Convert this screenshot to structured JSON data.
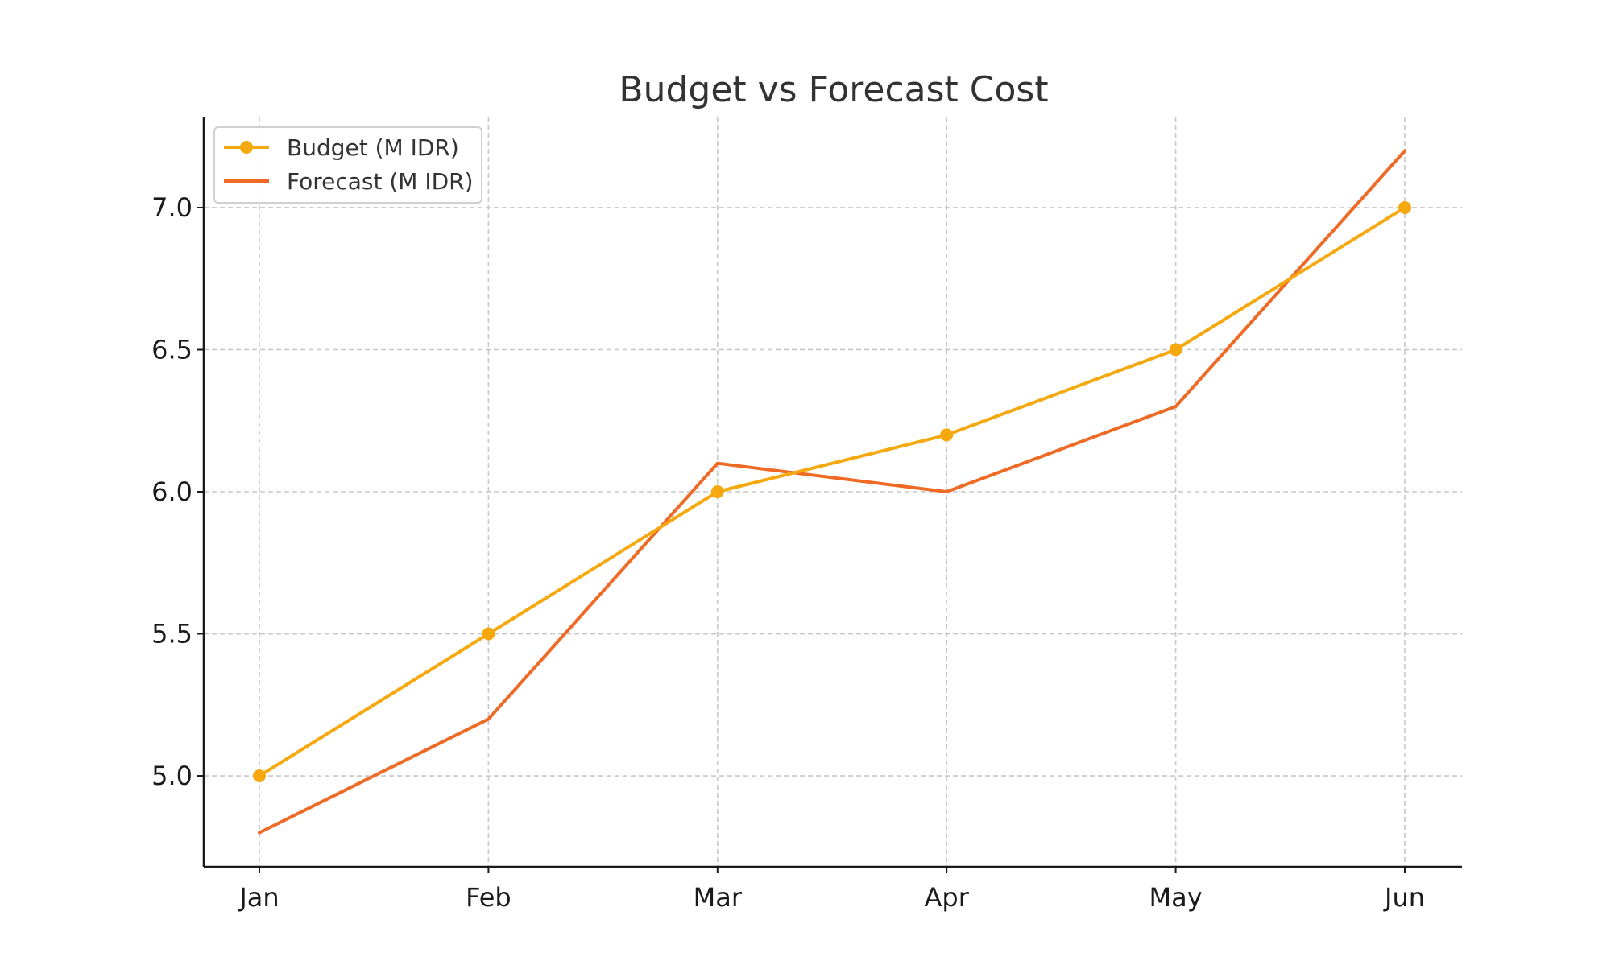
{
  "chart_data": {
    "type": "line",
    "title": "Budget vs Forecast Cost",
    "xlabel": "",
    "ylabel": "",
    "categories": [
      "Jan",
      "Feb",
      "Mar",
      "Apr",
      "May",
      "Jun"
    ],
    "series": [
      {
        "name": "Budget (M IDR)",
        "values": [
          5.0,
          5.5,
          6.0,
          6.2,
          6.5,
          7.0
        ],
        "color": "#f5a90f",
        "marker": "circle"
      },
      {
        "name": "Forecast (M IDR)",
        "values": [
          4.8,
          5.2,
          6.1,
          6.0,
          6.3,
          7.2
        ],
        "color": "#ef6a25",
        "marker": "none"
      }
    ],
    "ylim": [
      4.68,
      7.32
    ],
    "yticks": [
      5.0,
      5.5,
      6.0,
      6.5,
      7.0
    ],
    "ytick_labels": [
      "5.0",
      "5.5",
      "6.0",
      "6.5",
      "7.0"
    ],
    "grid": true,
    "legend_position": "top-left"
  }
}
